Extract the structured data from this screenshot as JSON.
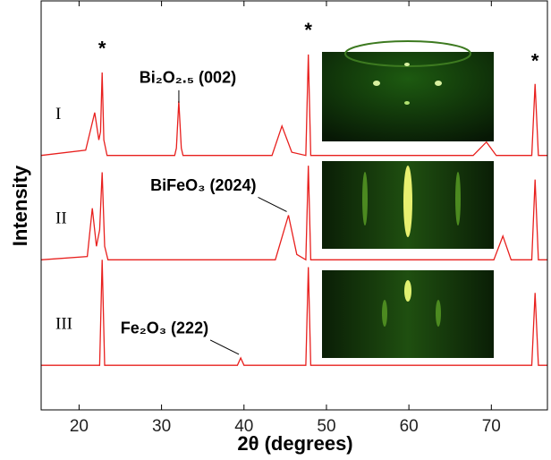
{
  "chart_data": {
    "type": "line",
    "x_label": "2θ (degrees)",
    "y_label": "Intensity",
    "xlim": [
      15.4,
      76.8
    ],
    "xticks": [
      20,
      30,
      40,
      50,
      60,
      70
    ],
    "ylim": [
      0,
      100
    ],
    "color": "#e8201e",
    "series": [
      {
        "name": "I",
        "x": [
          15.4,
          20.8,
          21.9,
          22.4,
          22.6,
          22.8,
          23.0,
          23.4,
          31.6,
          31.8,
          32.1,
          32.4,
          32.6,
          43.4,
          44.6,
          45.8,
          47.5,
          47.8,
          48.1,
          67.8,
          69.4,
          70.6,
          74.9,
          75.3,
          75.7,
          76.8
        ],
        "values": [
          62.2,
          63.5,
          72.7,
          66,
          68,
          82.5,
          66,
          62.2,
          62.2,
          64,
          75.5,
          64,
          62.2,
          62.2,
          69.4,
          63,
          62.2,
          86.9,
          62.2,
          62.2,
          65.5,
          62.2,
          62.2,
          79.7,
          62.2,
          62.2
        ]
      },
      {
        "name": "II",
        "x": [
          15.4,
          21.0,
          21.6,
          22.1,
          22.5,
          22.8,
          23.1,
          23.5,
          43.8,
          45.4,
          46.4,
          47.5,
          47.8,
          48.1,
          70.3,
          71.4,
          72.4,
          74.9,
          75.3,
          75.7,
          76.8
        ],
        "values": [
          36.7,
          37.5,
          49.3,
          40,
          44,
          58.1,
          40,
          36.7,
          36.7,
          47.6,
          38,
          36.7,
          59.7,
          36.7,
          36.7,
          42.5,
          36.7,
          36.7,
          56.3,
          36.7,
          36.7
        ]
      },
      {
        "name": "III",
        "x": [
          15.4,
          22.5,
          22.8,
          23.1,
          39.2,
          39.6,
          40.0,
          47.5,
          47.8,
          48.1,
          74.9,
          75.3,
          75.7,
          76.8
        ],
        "values": [
          10.9,
          10.9,
          36.7,
          10.9,
          10.9,
          12.7,
          10.9,
          10.9,
          34.9,
          10.9,
          10.9,
          28.6,
          10.9,
          10.9
        ]
      }
    ],
    "annotations": [
      {
        "text": "*",
        "x": 22.8,
        "y": 88
      },
      {
        "text": "*",
        "x": 47.8,
        "y": 92.5
      },
      {
        "text": "*",
        "x": 75.3,
        "y": 85
      },
      {
        "text": "Bi₂O₂.₅ (002)",
        "x": 32.1,
        "y": 81
      },
      {
        "text": "BiFeO₃ (2024)",
        "x": 45.4,
        "y": 47.6
      },
      {
        "text": "Fe₂O₃ (222)",
        "x": 39.6,
        "y": 12.7
      }
    ]
  }
}
